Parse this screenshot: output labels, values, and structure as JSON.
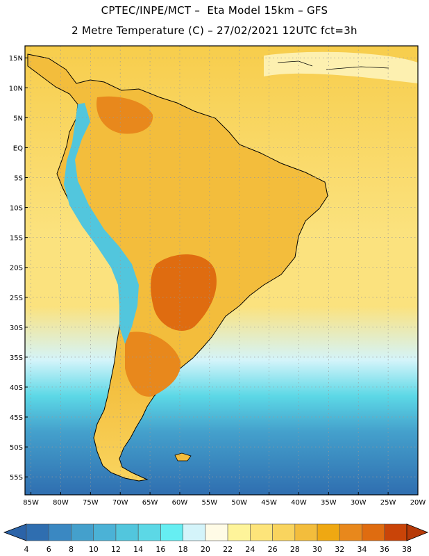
{
  "header": {
    "line1": "CPTEC/INPE/MCT –  Eta Model 15km – GFS",
    "line2": "2 Metre Temperature (C) – 27/02/2021 12UTC fct=3h"
  },
  "axes": {
    "lat_labels": [
      "15N",
      "10N",
      "5N",
      "EQ",
      "5S",
      "10S",
      "15S",
      "20S",
      "25S",
      "30S",
      "35S",
      "40S",
      "45S",
      "50S",
      "55S"
    ],
    "lat_values": [
      15,
      10,
      5,
      0,
      -5,
      -10,
      -15,
      -20,
      -25,
      -30,
      -35,
      -40,
      -45,
      -50,
      -55
    ],
    "lon_labels": [
      "85W",
      "80W",
      "75W",
      "70W",
      "65W",
      "60W",
      "55W",
      "50W",
      "45W",
      "40W",
      "35W",
      "30W",
      "25W",
      "20W"
    ],
    "lon_values": [
      -85,
      -80,
      -75,
      -70,
      -65,
      -60,
      -55,
      -50,
      -45,
      -40,
      -35,
      -30,
      -25,
      -20
    ],
    "lat_range": [
      -58,
      17
    ],
    "lon_range": [
      -86,
      -20
    ]
  },
  "colorbar": {
    "labels": [
      "4",
      "6",
      "8",
      "10",
      "12",
      "14",
      "16",
      "18",
      "20",
      "22",
      "24",
      "26",
      "28",
      "30",
      "32",
      "34",
      "36",
      "38"
    ],
    "colors": [
      "#2f6eb0",
      "#3a88c2",
      "#44a0cc",
      "#4bb2d6",
      "#52c6dd",
      "#5cd8e6",
      "#66eef2",
      "#d4f4fa",
      "#fffbe6",
      "#fef49a",
      "#fde47a",
      "#f9d45e",
      "#f3bd3c",
      "#efa812",
      "#e8881c",
      "#df6c10",
      "#c94408"
    ],
    "end_colors": [
      "#2b63a8",
      "#b63a08"
    ]
  },
  "field_colors": {
    "ocean_north": "#f7cd4c",
    "ocean_mid": "#fbe27e",
    "ocean_pale": "#fdf0b0",
    "ocean_cold1": "#d4f4fa",
    "ocean_cold2": "#5cd8e6",
    "ocean_cold3": "#44a0cc",
    "ocean_cold4": "#2f6eb0",
    "land_warm": "#f3bd3c",
    "land_hot": "#e8881c",
    "land_very_hot": "#df6c10",
    "andes": "#52c6dd",
    "grid": "#999999",
    "coast": "#000000"
  }
}
